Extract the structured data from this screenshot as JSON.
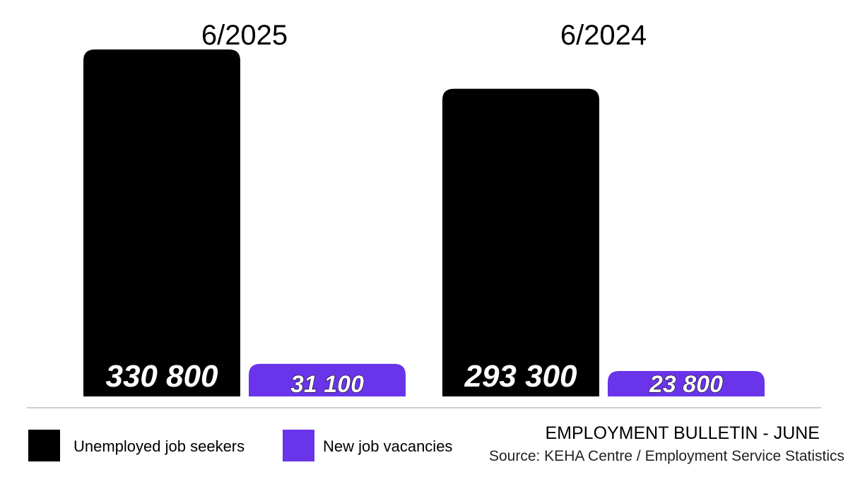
{
  "chart_data": {
    "type": "bar",
    "categories": [
      "6/2025",
      "6/2024"
    ],
    "series": [
      {
        "name": "Unemployed job seekers",
        "values": [
          330800,
          293300
        ],
        "labels": [
          "330 800",
          "293 300"
        ],
        "color": "#000000"
      },
      {
        "name": "New job vacancies",
        "values": [
          31100,
          23800
        ],
        "labels": [
          "31 100",
          "23 800"
        ],
        "color": "#6a35ea"
      }
    ],
    "legend_position": "bottom-left",
    "grid": false
  },
  "legend": {
    "items": [
      {
        "label": "Unemployed job seekers",
        "color": "#000000"
      },
      {
        "label": "New job vacancies",
        "color": "#6a35ea"
      }
    ]
  },
  "footer": {
    "bulletin": "EMPLOYMENT BULLETIN - JUNE",
    "source": "Source: KEHA Centre / Employment Service Statistics"
  }
}
